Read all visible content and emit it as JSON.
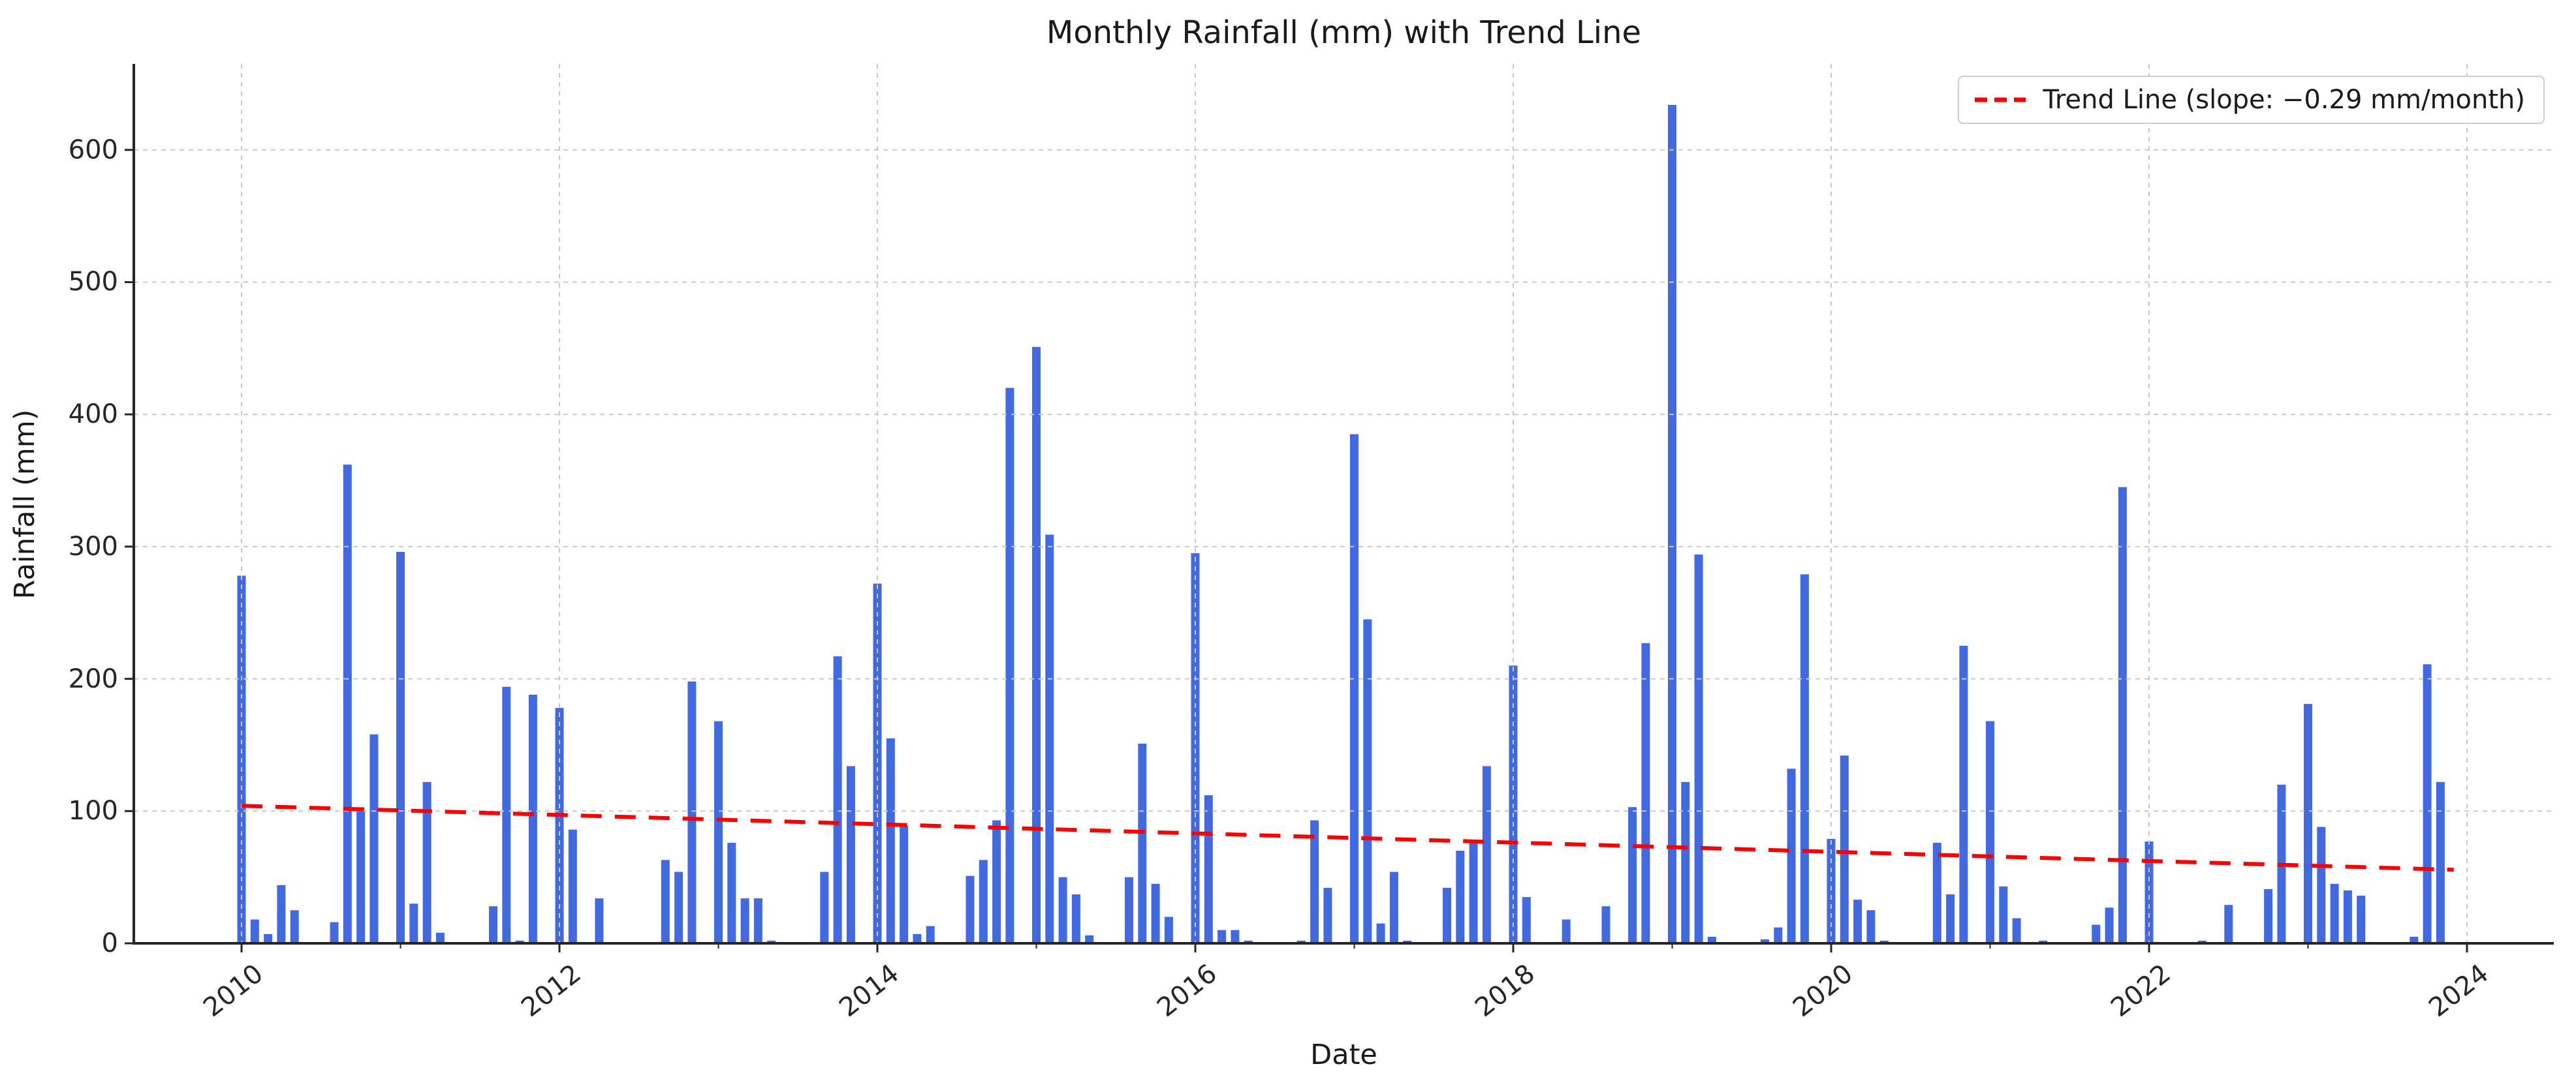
{
  "title": "Monthly Rainfall (mm) with Trend Line",
  "xlabel": "Date",
  "ylabel": "Rainfall (mm)",
  "legend": {
    "label": "Trend Line (slope: −0.29 mm/month)"
  },
  "colors": {
    "bar": "#4169e1",
    "trend": "#ff0000",
    "grid": "#c9c9c9",
    "spine": "#262626",
    "text": "#262626"
  },
  "chart_data": {
    "type": "bar",
    "title": "Monthly Rainfall (mm) with Trend Line",
    "xlabel": "Date",
    "ylabel": "Rainfall (mm)",
    "ylim": [
      0,
      665
    ],
    "y_ticks": [
      0,
      100,
      200,
      300,
      400,
      500,
      600
    ],
    "x_tick_years": [
      2010,
      2011,
      2012,
      2013,
      2014,
      2015,
      2016,
      2017,
      2018,
      2019,
      2020,
      2021,
      2022,
      2023,
      2024
    ],
    "x_label_years": [
      2010,
      2012,
      2014,
      2016,
      2018,
      2020,
      2022,
      2024
    ],
    "grid": true,
    "legend_position": "upper right",
    "x_start": "2010-01",
    "x_end": "2023-12",
    "series": [
      {
        "name": "Monthly Rainfall (mm)",
        "values": [
          278,
          18,
          7,
          44,
          25,
          0,
          0,
          16,
          362,
          100,
          158,
          0,
          296,
          30,
          122,
          8,
          0,
          0,
          0,
          28,
          194,
          2,
          188,
          0,
          178,
          86,
          0,
          34,
          0,
          0,
          0,
          0,
          63,
          54,
          198,
          0,
          168,
          76,
          34,
          34,
          2,
          0,
          0,
          0,
          54,
          217,
          134,
          0,
          272,
          155,
          89,
          7,
          13,
          0,
          0,
          51,
          63,
          93,
          420,
          0,
          451,
          309,
          50,
          37,
          6,
          0,
          0,
          50,
          151,
          45,
          20,
          0,
          295,
          112,
          10,
          10,
          2,
          0,
          0,
          0,
          2,
          93,
          42,
          0,
          385,
          245,
          15,
          54,
          2,
          0,
          0,
          42,
          70,
          78,
          134,
          0,
          210,
          35,
          0,
          0,
          18,
          0,
          0,
          28,
          0,
          103,
          227,
          0,
          634,
          122,
          294,
          5,
          0,
          0,
          0,
          3,
          12,
          132,
          279,
          0,
          79,
          142,
          33,
          25,
          2,
          0,
          0,
          0,
          76,
          37,
          225,
          0,
          168,
          43,
          19,
          0,
          2,
          0,
          0,
          0,
          14,
          27,
          345,
          0,
          77,
          0,
          0,
          0,
          2,
          0,
          29,
          0,
          0,
          41,
          120,
          0,
          181,
          88,
          45,
          40,
          36,
          0,
          0,
          0,
          5,
          211,
          122,
          0
        ]
      }
    ],
    "trend": {
      "label": "Trend Line (slope: −0.29 mm/month)",
      "slope_mm_per_month": -0.29,
      "start_value_mm": 104,
      "end_value_mm": 55.6
    }
  }
}
